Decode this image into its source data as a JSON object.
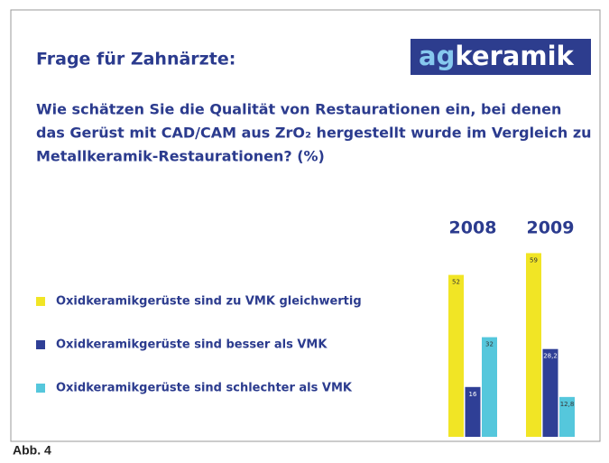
{
  "chart_data": {
    "type": "bar",
    "title": "Frage für Zahnärzte:",
    "logo": {
      "prefix": "ag",
      "suffix": "keramik"
    },
    "subtitle_lines": [
      "Wie schätzen Sie die Qualität von Restaurationen ein, bei denen",
      "das Gerüst mit CAD/CAM aus ZrO₂ hergestellt wurde im Vergleich zu",
      "Metallkeramik-Restaurationen? (%)"
    ],
    "caption": "Abb. 4",
    "categories": [
      "2008",
      "2009"
    ],
    "series": [
      {
        "name": "Oxidkeramikgerüste sind zu VMK gleichwertig",
        "color": "#f1e525",
        "values": [
          52,
          59
        ],
        "value_labels": [
          "52",
          "59"
        ]
      },
      {
        "name": "Oxidkeramikgerüste sind besser als VMK",
        "color": "#2f3f96",
        "values": [
          16,
          28.2
        ],
        "value_labels": [
          "16",
          "28,2"
        ]
      },
      {
        "name": "Oxidkeramikgerüste sind schlechter als VMK",
        "color": "#55c7dc",
        "values": [
          32,
          12.8
        ],
        "value_labels": [
          "32",
          "12,8"
        ]
      }
    ]
  }
}
